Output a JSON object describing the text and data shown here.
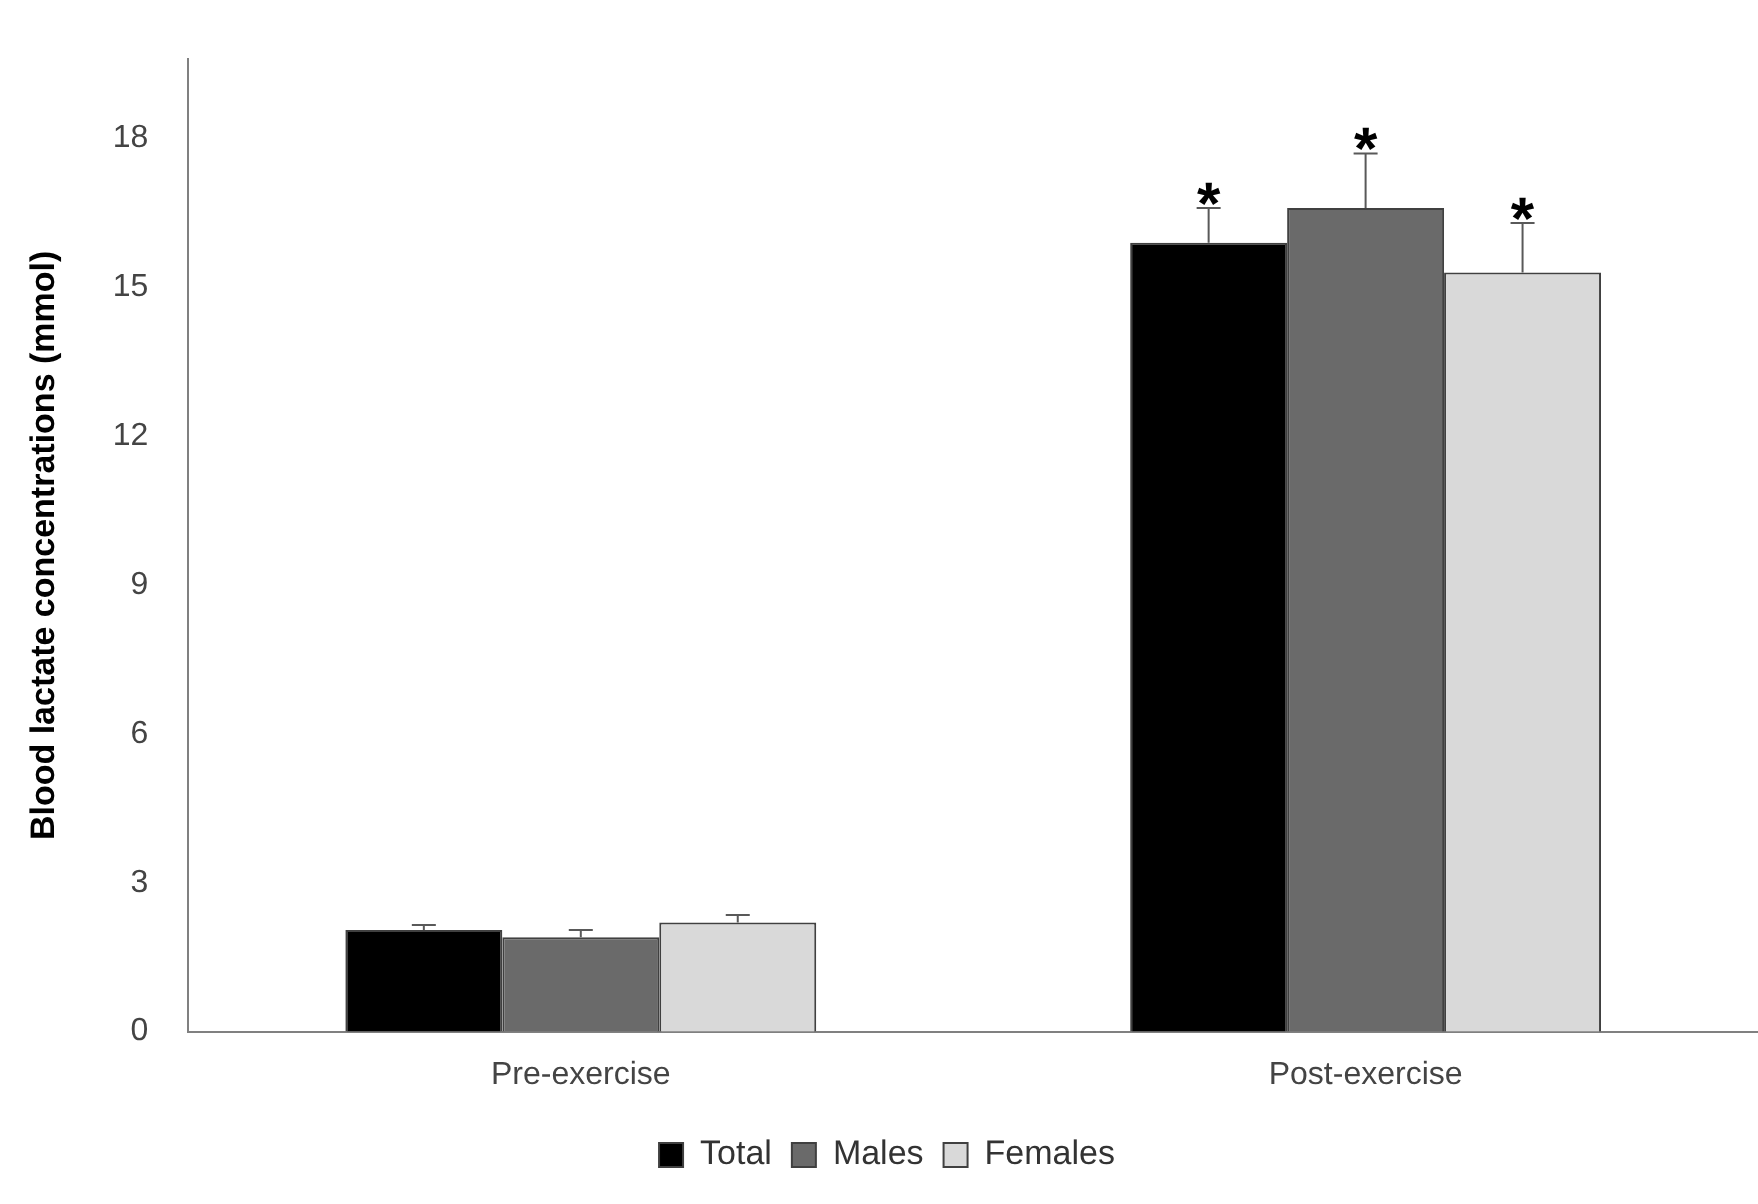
{
  "chart_data": {
    "type": "bar",
    "ylabel": "Blood lactate concentrations (mmol)",
    "categories": [
      "Pre-exercise",
      "Post-exercise"
    ],
    "series": [
      {
        "name": "Total",
        "color": "#000000",
        "values": [
          2.05,
          15.9
        ],
        "errors": [
          [
            2.05,
            2.15
          ],
          [
            15.9,
            16.6
          ]
        ]
      },
      {
        "name": "Males",
        "color": "#6a6a6a",
        "values": [
          1.9,
          16.6
        ],
        "errors": [
          [
            1.9,
            2.05
          ],
          [
            16.6,
            17.7
          ]
        ]
      },
      {
        "name": "Females",
        "color": "#d9d9d9",
        "values": [
          2.2,
          15.3
        ],
        "errors": [
          [
            2.2,
            2.35
          ],
          [
            15.3,
            16.3
          ]
        ]
      }
    ],
    "annotations": [
      "*",
      "*",
      "*"
    ],
    "ylim": [
      0,
      19.6
    ],
    "yticks": [
      0,
      3,
      6,
      9,
      12,
      15,
      18
    ],
    "grid": false,
    "legend": "bottom"
  }
}
